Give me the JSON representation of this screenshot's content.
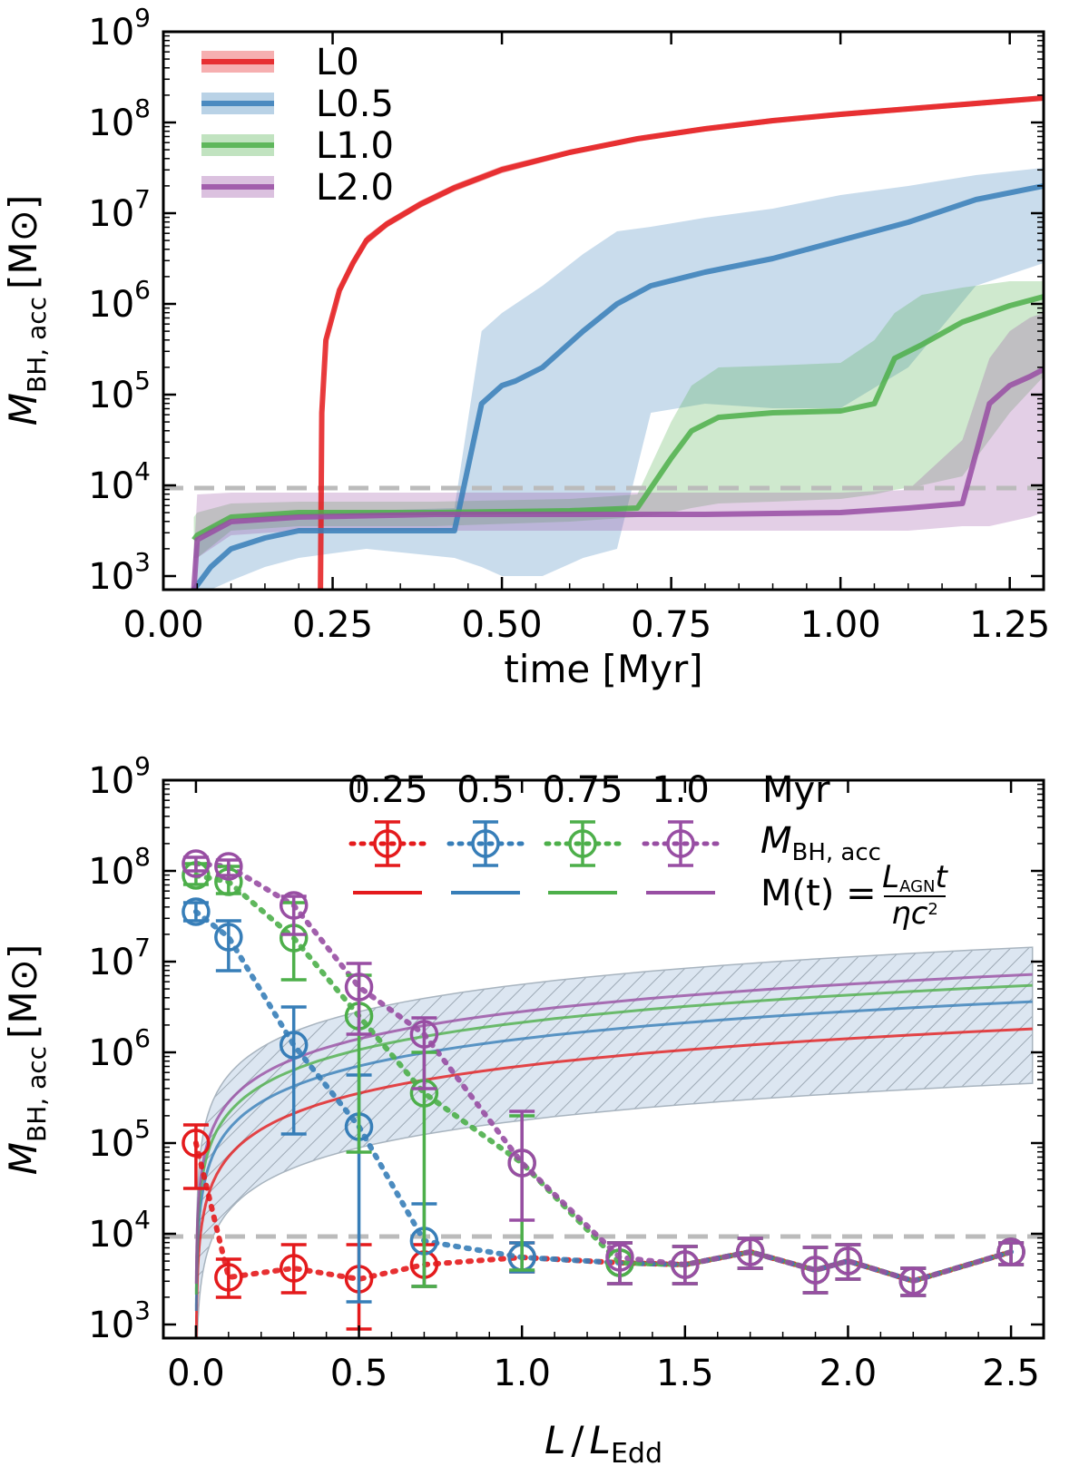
{
  "colors": {
    "L0": "#e41a1c",
    "L0.5": "#377eb8",
    "L1.0": "#4daf4a",
    "L2.0": "#984ea3",
    "threshold": "#bbbbbb",
    "hatch_fill": "#d6e2ee",
    "hatch_line": "#8c9aa8"
  },
  "chart_data": [
    {
      "type": "line",
      "title": "",
      "xlabel": "time [Myr]",
      "ylabel_main": "M",
      "ylabel_sub": "BH, acc",
      "ylabel_unit": "[M",
      "ylabel_unit_close": "]",
      "xlim": [
        0.0,
        1.3
      ],
      "ylim_log10": [
        2.85,
        9.0
      ],
      "xticks": [
        "0.00",
        "0.25",
        "0.50",
        "0.75",
        "1.00",
        "1.25"
      ],
      "ytick_exponents": [
        "3",
        "4",
        "5",
        "6",
        "7",
        "8",
        "9"
      ],
      "ytick_base": "10",
      "threshold_log10": 3.97,
      "legend": [
        "L0",
        "L0.5",
        "L1.0",
        "L2.0"
      ],
      "series": [
        {
          "name": "L0",
          "x": [
            0.232,
            0.234,
            0.24,
            0.26,
            0.28,
            0.3,
            0.33,
            0.38,
            0.43,
            0.5,
            0.6,
            0.7,
            0.8,
            0.9,
            1.0,
            1.1,
            1.2,
            1.3
          ],
          "median_log10": [
            2.85,
            4.8,
            5.6,
            6.15,
            6.45,
            6.7,
            6.88,
            7.1,
            7.28,
            7.48,
            7.67,
            7.82,
            7.93,
            8.02,
            8.09,
            8.15,
            8.21,
            8.27
          ],
          "lower_log10": [
            2.85,
            4.75,
            5.55,
            6.1,
            6.4,
            6.65,
            6.84,
            7.06,
            7.24,
            7.44,
            7.64,
            7.79,
            7.9,
            7.99,
            8.06,
            8.12,
            8.18,
            8.24
          ],
          "upper_log10": [
            2.85,
            4.85,
            5.65,
            6.2,
            6.5,
            6.75,
            6.92,
            7.14,
            7.32,
            7.52,
            7.7,
            7.85,
            7.96,
            8.05,
            8.12,
            8.18,
            8.24,
            8.3
          ]
        },
        {
          "name": "L0.5",
          "x": [
            0.045,
            0.07,
            0.1,
            0.15,
            0.2,
            0.3,
            0.43,
            0.47,
            0.5,
            0.52,
            0.56,
            0.62,
            0.67,
            0.72,
            0.8,
            0.9,
            1.0,
            1.1,
            1.2,
            1.3
          ],
          "median_log10": [
            2.85,
            3.1,
            3.3,
            3.42,
            3.5,
            3.5,
            3.5,
            4.9,
            5.1,
            5.15,
            5.3,
            5.7,
            6.0,
            6.2,
            6.35,
            6.5,
            6.7,
            6.9,
            7.15,
            7.3
          ],
          "lower_log10": [
            2.85,
            2.85,
            2.95,
            3.1,
            3.2,
            3.3,
            3.2,
            3.1,
            3.0,
            3.0,
            3.0,
            3.2,
            3.3,
            4.8,
            4.9,
            4.85,
            4.85,
            5.3,
            6.2,
            6.45
          ],
          "upper_log10": [
            3.3,
            3.55,
            3.6,
            3.68,
            3.7,
            3.72,
            3.75,
            5.7,
            5.9,
            6.0,
            6.2,
            6.55,
            6.8,
            6.85,
            6.95,
            7.05,
            7.2,
            7.3,
            7.42,
            7.5
          ]
        },
        {
          "name": "L1.0",
          "x": [
            0.045,
            0.05,
            0.1,
            0.2,
            0.4,
            0.6,
            0.7,
            0.75,
            0.78,
            0.82,
            0.9,
            1.0,
            1.05,
            1.08,
            1.12,
            1.18,
            1.25,
            1.3
          ],
          "median_log10": [
            3.4,
            3.45,
            3.65,
            3.7,
            3.7,
            3.72,
            3.75,
            4.3,
            4.6,
            4.75,
            4.8,
            4.82,
            4.9,
            5.4,
            5.55,
            5.8,
            5.98,
            6.08
          ],
          "lower_log10": [
            3.2,
            3.2,
            3.5,
            3.55,
            3.55,
            3.6,
            3.65,
            3.7,
            3.75,
            3.8,
            3.82,
            3.85,
            3.9,
            3.95,
            4.0,
            4.1,
            4.8,
            5.2
          ],
          "upper_log10": [
            3.65,
            3.7,
            3.8,
            3.82,
            3.82,
            3.85,
            3.9,
            4.7,
            5.1,
            5.3,
            5.32,
            5.35,
            5.6,
            5.9,
            6.1,
            6.18,
            6.25,
            6.25
          ]
        },
        {
          "name": "L2.0",
          "x": [
            0.045,
            0.05,
            0.1,
            0.2,
            0.4,
            0.6,
            0.8,
            1.0,
            1.1,
            1.18,
            1.22,
            1.25,
            1.28,
            1.3
          ],
          "median_log10": [
            2.85,
            3.4,
            3.6,
            3.65,
            3.68,
            3.68,
            3.68,
            3.7,
            3.75,
            3.8,
            4.9,
            5.1,
            5.2,
            5.28
          ],
          "lower_log10": [
            2.85,
            3.2,
            3.45,
            3.5,
            3.5,
            3.5,
            3.5,
            3.5,
            3.5,
            3.55,
            3.55,
            3.6,
            3.65,
            3.7
          ],
          "upper_log10": [
            3.2,
            3.9,
            3.92,
            3.92,
            3.92,
            3.92,
            3.92,
            3.92,
            3.95,
            4.5,
            5.4,
            5.7,
            5.85,
            5.9
          ]
        }
      ]
    },
    {
      "type": "scatter",
      "title": "",
      "xlabel_main": "L",
      "xlabel_slash": "/",
      "xlabel_L2": "L",
      "xlabel_sub": "Edd",
      "ylabel_main": "M",
      "ylabel_sub": "BH, acc",
      "ylabel_unit": "[M",
      "ylabel_unit_close": "]",
      "xlim": [
        -0.1,
        2.6
      ],
      "ylim_log10": [
        2.85,
        9.0
      ],
      "xticks": [
        "0.0",
        "0.5",
        "1.0",
        "1.5",
        "2.0",
        "2.5"
      ],
      "xtick_values": [
        0.0,
        0.5,
        1.0,
        1.5,
        2.0,
        2.5
      ],
      "ytick_exponents": [
        "3",
        "4",
        "5",
        "6",
        "7",
        "8",
        "9"
      ],
      "ytick_base": "10",
      "threshold_log10": 3.97,
      "legend": {
        "times": [
          "0.25",
          "0.5",
          "0.75",
          "1.0"
        ],
        "unit": "Myr",
        "row_points_label": "M",
        "row_points_sub": "BH, acc",
        "row_lines_label": "M(t) =",
        "fraction_num": "L",
        "fraction_num_sub": "AGN",
        "fraction_num_t": "t",
        "fraction_den": "ηc",
        "fraction_den_sup": "2"
      },
      "x": [
        0.0,
        0.1,
        0.3,
        0.5,
        0.7,
        1.0,
        1.3,
        1.5,
        1.7,
        1.9,
        2.0,
        2.2,
        2.5
      ],
      "analytic_curve_log10_at_x1": {
        "0.25 Myr": 5.85,
        "0.5 Myr": 6.15,
        "0.75 Myr": 6.33,
        "1.0 Myr": 6.45
      },
      "analytic_band_log10_at_x1": {
        "lower": 5.25,
        "upper": 6.75
      },
      "series": [
        {
          "name": "0.25 Myr",
          "y_log10": [
            5.0,
            3.52,
            3.62,
            3.5,
            3.66,
            3.74,
            3.68,
            3.66,
            3.8,
            3.6,
            3.7,
            3.48,
            3.8
          ],
          "err_lo_log10": [
            4.5,
            3.3,
            3.35,
            2.95,
            3.42,
            3.58,
            3.45,
            3.45,
            3.62,
            3.35,
            3.5,
            3.32,
            3.66
          ],
          "err_hi_log10": [
            5.2,
            3.72,
            3.88,
            3.88,
            3.88,
            3.9,
            3.9,
            3.86,
            3.95,
            3.85,
            3.88,
            3.62,
            3.9
          ]
        },
        {
          "name": "0.5 Myr",
          "y_log10": [
            7.55,
            7.27,
            6.08,
            5.18,
            3.92,
            3.74,
            3.68,
            3.66,
            3.8,
            3.6,
            3.7,
            3.48,
            3.8
          ],
          "err_lo_log10": [
            7.45,
            6.9,
            5.1,
            3.25,
            3.42,
            3.58,
            3.45,
            3.45,
            3.62,
            3.35,
            3.5,
            3.32,
            3.66
          ],
          "err_hi_log10": [
            7.65,
            7.45,
            6.5,
            5.75,
            4.33,
            3.9,
            3.9,
            3.86,
            3.95,
            3.85,
            3.88,
            3.62,
            3.9
          ]
        },
        {
          "name": "0.75 Myr",
          "y_log10": [
            7.95,
            7.88,
            7.26,
            6.4,
            5.55,
            4.78,
            3.68,
            3.66,
            3.8,
            3.6,
            3.7,
            3.48,
            3.8
          ],
          "err_lo_log10": [
            7.85,
            7.75,
            6.8,
            4.9,
            3.42,
            3.6,
            3.45,
            3.45,
            3.62,
            3.35,
            3.5,
            3.32,
            3.66
          ],
          "err_hi_log10": [
            8.08,
            8.05,
            7.65,
            6.85,
            6.0,
            5.3,
            3.9,
            3.86,
            3.95,
            3.85,
            3.88,
            3.62,
            3.9
          ]
        },
        {
          "name": "1.0 Myr",
          "y_log10": [
            8.08,
            8.05,
            7.62,
            6.72,
            6.2,
            4.78,
            3.74,
            3.66,
            3.8,
            3.6,
            3.7,
            3.48,
            3.8
          ],
          "err_lo_log10": [
            8.0,
            7.95,
            7.3,
            6.2,
            5.6,
            4.15,
            3.45,
            3.45,
            3.62,
            3.35,
            3.5,
            3.32,
            3.66
          ],
          "err_hi_log10": [
            8.15,
            8.12,
            7.72,
            6.98,
            6.38,
            5.35,
            3.9,
            3.86,
            3.95,
            3.85,
            3.88,
            3.62,
            3.9
          ]
        }
      ]
    }
  ]
}
